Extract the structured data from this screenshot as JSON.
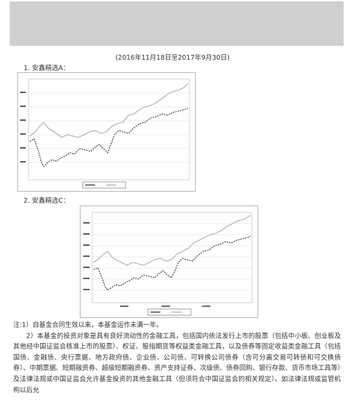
{
  "document": {
    "period": "(2016年11月18日至2017年9月30日)",
    "section1_title": "1.  安鑫精选A：",
    "section2_title": "2.  安鑫精选C：",
    "note1": "注:1）自基金合同生效以来，本基金运作未满一年。",
    "note2": "2）本基金的投资对象是具有良好流动性的金融工具，包括国内依法发行上市的股票（包括中小板、创业板及其他经中国证监会核准上市的股票）、权证、股指期货等权益类金融工具，以及债券等固定收益类金融工具（包括国债、金融债、央行票据、地方政府债、企业债、公司债、可转换公司债券（含可分离交易可转债和可交换债券）、中期票据、短期融资券、超级短期融资券、资产支持证券、次级债、债券回购、银行存款、货币市场工具等）及法律法规或中国证监会允许基金投资的其他金融工具（但须符合中国证监会的相关规定）。如法律法规或监管机构以后允"
  },
  "colors": {
    "header_band": "#cfcfcf",
    "fund_line": "#222222",
    "benchmark_line": "#aaaaaa",
    "grid": "#e6e6e6"
  }
}
